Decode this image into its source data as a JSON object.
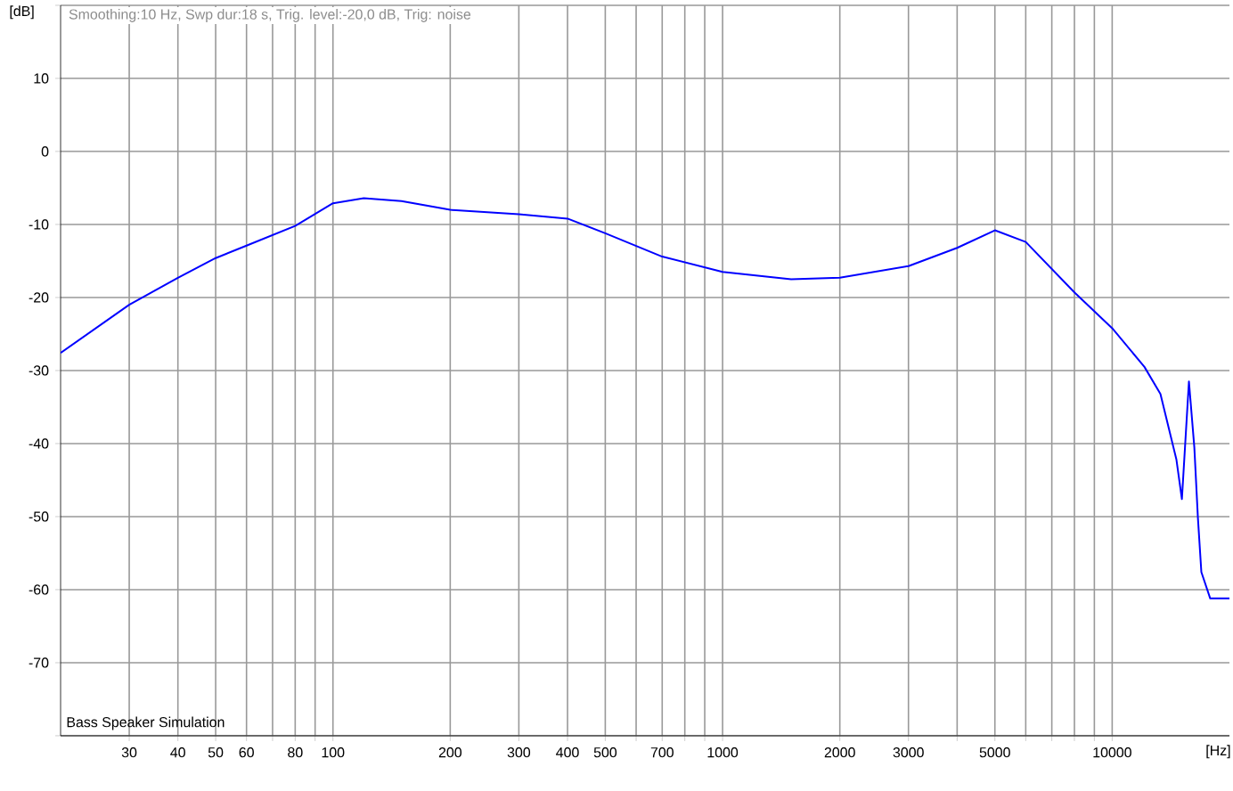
{
  "chart_data": {
    "type": "line",
    "title": "Smoothing:10 Hz, Swp dur:18 s, Trig. level:-20,0 dB, Trig: noise",
    "xlabel": "[Hz]",
    "ylabel": "[dB]",
    "annotations": [
      "Bass Speaker Simulation"
    ],
    "log": "x",
    "x": [
      20,
      30,
      40,
      50,
      60,
      80,
      100,
      120,
      150,
      200,
      300,
      400,
      500,
      700,
      1000,
      1500,
      2000,
      3000,
      4000,
      5000,
      6000,
      8000,
      10000,
      12100,
      13300,
      14620,
      15100,
      15740,
      16250,
      16600,
      16940,
      17850,
      20000
    ],
    "series": [
      {
        "color": "#0000ff",
        "values": [
          -27.6,
          -21,
          -17.3,
          -14.6,
          -12.9,
          -10.2,
          -7.1,
          -6.4,
          -6.8,
          -8,
          -8.6,
          -9.2,
          -11.2,
          -14.4,
          -16.5,
          -17.5,
          -17.3,
          -15.7,
          -13.2,
          -10.8,
          -12.4,
          -19.3,
          -24.2,
          -29.5,
          -33.2,
          -42.2,
          -47.6,
          -31.5,
          -40.5,
          -50.2,
          -57.6,
          -61.2,
          -61.2
        ]
      }
    ],
    "xlim": [
      20,
      20000
    ],
    "ylim": [
      -80,
      20
    ],
    "xticks": [
      30,
      40,
      50,
      60,
      {
        "value": 70,
        "label": null
      },
      80,
      {
        "value": 90,
        "label": null
      },
      100,
      200,
      300,
      400,
      500,
      {
        "value": 600,
        "label": null
      },
      700,
      {
        "value": 800,
        "label": null
      },
      {
        "value": 900,
        "label": null
      },
      1000,
      2000,
      3000,
      {
        "value": 4000,
        "label": null
      },
      5000,
      {
        "value": 6000,
        "label": null
      },
      {
        "value": 7000,
        "label": null
      },
      {
        "value": 8000,
        "label": null
      },
      {
        "value": 9000,
        "label": null
      },
      10000
    ],
    "yticks": [
      {
        "value": -80,
        "label": null
      },
      -70,
      -60,
      -50,
      -40,
      -30,
      -20,
      -10,
      0,
      10,
      {
        "value": 20,
        "label": null
      }
    ],
    "grid": true,
    "marker": "none",
    "line_style": "solid"
  }
}
